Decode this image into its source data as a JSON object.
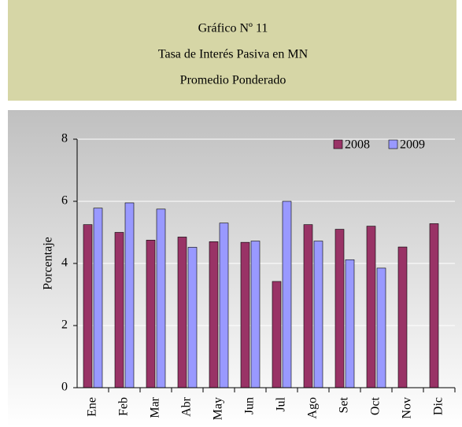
{
  "chart_data": {
    "type": "bar",
    "title_lines": [
      "Gráfico Nº 11",
      "Tasa de Interés Pasiva en MN",
      "Promedio Ponderado"
    ],
    "y_label": "Porcentaje",
    "categories": [
      "Ene",
      "Feb",
      "Mar",
      "Abr",
      "May",
      "Jun",
      "Jul",
      "Ago",
      "Set",
      "Oct",
      "Nov",
      "Dic"
    ],
    "series": [
      {
        "name": "2008",
        "color": "#993366",
        "values": [
          5.25,
          5.0,
          4.75,
          4.85,
          4.7,
          4.68,
          3.42,
          5.25,
          5.1,
          5.2,
          4.53,
          5.28
        ]
      },
      {
        "name": "2009",
        "color": "#9999ff",
        "values": [
          5.78,
          5.95,
          5.75,
          4.52,
          5.3,
          4.72,
          6.0,
          4.72,
          4.12,
          3.85,
          null,
          null
        ]
      }
    ],
    "ylim": [
      0,
      8
    ],
    "yticks": [
      0,
      2,
      4,
      6,
      8
    ],
    "grid": true,
    "legend": "top-right"
  }
}
